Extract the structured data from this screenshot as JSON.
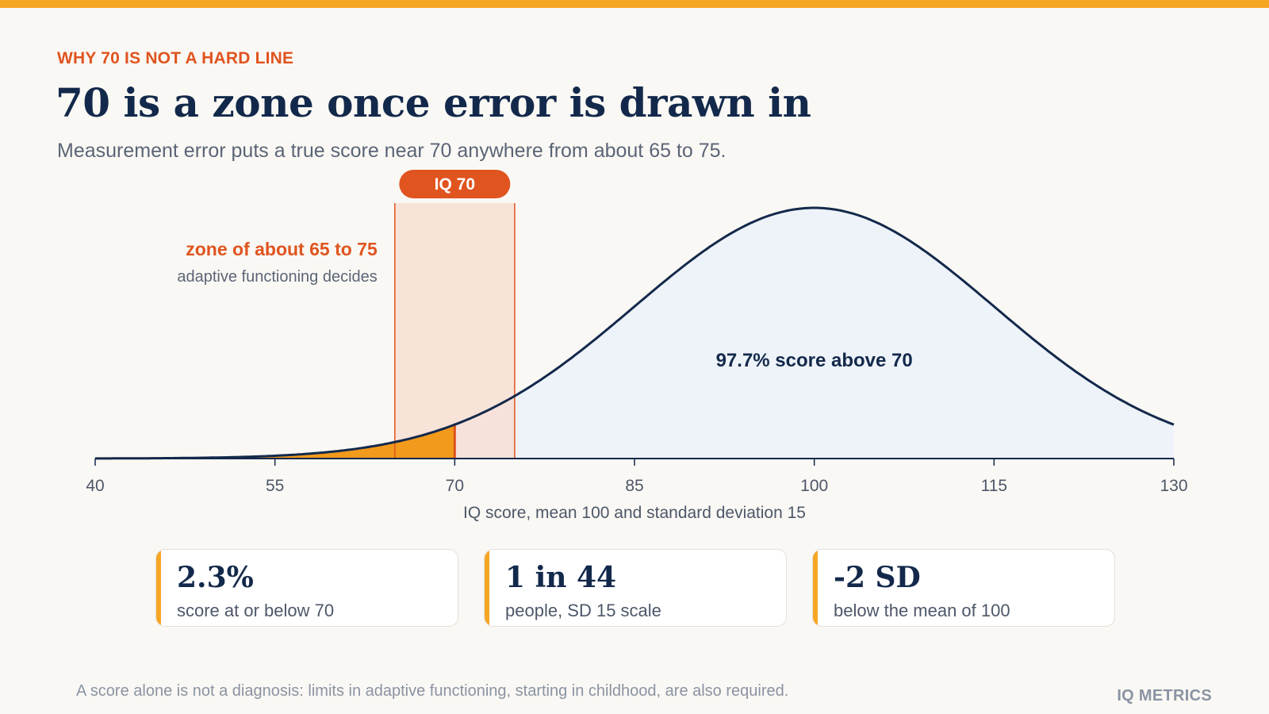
{
  "header": {
    "eyebrow": "WHY 70 IS NOT A HARD LINE",
    "title": "70 is a zone once error is drawn in",
    "subtitle": "Measurement error puts a true score near 70 anywhere from about 65 to 75."
  },
  "colors": {
    "accent": "#f5a623",
    "orange": "#e0541f",
    "navy": "#13294b",
    "zone_fill": "#f8ddd2",
    "curve_fill": "#eef3fa"
  },
  "chart_data": {
    "type": "area",
    "distribution": "normal",
    "mean": 100,
    "sd": 15,
    "xlim": [
      40,
      130
    ],
    "xticks": [
      40,
      55,
      70,
      85,
      100,
      115,
      130
    ],
    "xlabel": "IQ score, mean 100 and standard deviation 15",
    "cutoff": 70,
    "cutoff_badge": "IQ 70",
    "zone": [
      65,
      75
    ],
    "zone_title": "zone of about 65 to 75",
    "zone_subtitle": "adaptive functioning decides",
    "above_label": "97.7% score above 70",
    "legend": "none",
    "grid": false
  },
  "stats": [
    {
      "value": "2.3%",
      "label": "score at or below 70"
    },
    {
      "value": "1 in 44",
      "label": "people, SD 15 scale"
    },
    {
      "value": "-2 SD",
      "label": "below the mean of 100"
    }
  ],
  "footer": {
    "note": "A score alone is not a diagnosis: limits in adaptive functioning, starting in childhood, are also required.",
    "brand": "IQ METRICS"
  }
}
